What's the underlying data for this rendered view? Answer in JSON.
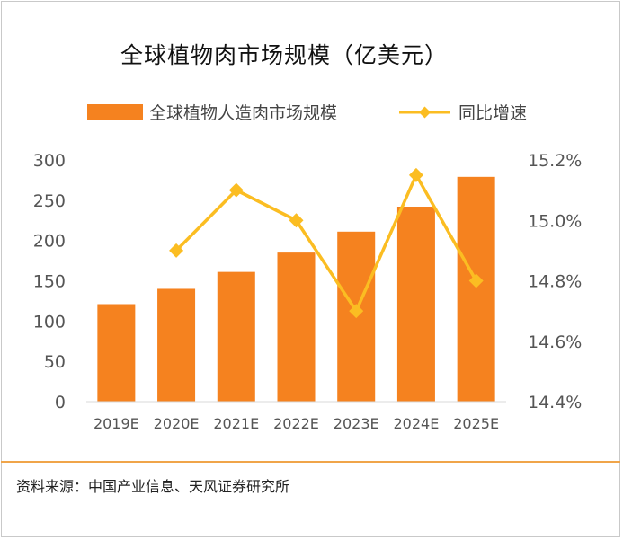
{
  "chart_data": {
    "type": "bar",
    "title": "全球植物肉市场规模（亿美元）",
    "categories": [
      "2019E",
      "2020E",
      "2021E",
      "2022E",
      "2023E",
      "2024E",
      "2025E"
    ],
    "series": [
      {
        "name": "全球植物人造肉市场规模",
        "type": "bar",
        "axis": "left",
        "color": "#f5821f",
        "values": [
          121,
          140,
          161,
          185,
          211,
          242,
          279
        ]
      },
      {
        "name": "同比增速",
        "type": "line",
        "axis": "right",
        "color": "#fbbd22",
        "values": [
          null,
          14.9,
          15.1,
          15.0,
          14.7,
          15.15,
          14.8
        ]
      }
    ],
    "ylim_left": [
      0,
      300
    ],
    "yticks_left": [
      "0",
      "50",
      "100",
      "150",
      "200",
      "250",
      "300"
    ],
    "ylim_right": [
      14.4,
      15.2
    ],
    "yticks_right": [
      "14.4%",
      "14.6%",
      "14.8%",
      "15.0%",
      "15.2%"
    ],
    "grid": false,
    "legend_position": "top"
  },
  "source": "资料来源：中国产业信息、天风证券研究所"
}
